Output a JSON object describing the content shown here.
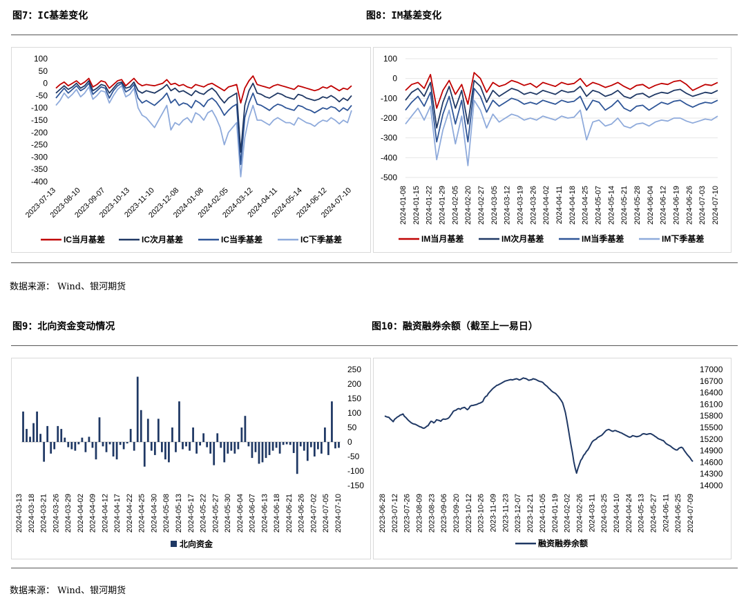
{
  "titles": {
    "fig7": "图7：IC基差变化",
    "fig8": "图8：IM基差变化",
    "fig9": "图9：北向资金变动情况",
    "fig10": "图10：融资融券余额（截至上一易日）"
  },
  "sources": {
    "top": "数据来源： Wind、银河期货",
    "bottom": "数据来源： Wind、银河期货"
  },
  "colors": {
    "red": "#c00000",
    "navy": "#1f3864",
    "blue": "#2e5597",
    "light": "#8eaadb"
  },
  "chart_data": [
    {
      "type": "line",
      "id": "ic",
      "yticks": [
        100,
        50,
        0,
        -50,
        -100,
        -150,
        -200,
        -250,
        -300,
        -350,
        -400
      ],
      "ylim": [
        -400,
        100
      ],
      "xlabels": [
        "2023-07-13",
        "2023-08-10",
        "2023-09-07",
        "2023-10-13",
        "2023-11-10",
        "2023-12-08",
        "2024-01-08",
        "2024-02-05",
        "2024-03-12",
        "2024-04-11",
        "2024-05-14",
        "2024-06-12",
        "2024-07-10"
      ],
      "series": [
        {
          "name": "IC当月基差",
          "color": "#c00000",
          "values": [
            -20,
            -5,
            5,
            -10,
            0,
            10,
            -5,
            5,
            20,
            -15,
            -5,
            10,
            5,
            -20,
            -5,
            10,
            15,
            -10,
            5,
            20,
            0,
            -10,
            -5,
            -8,
            -10,
            -5,
            0,
            15,
            -5,
            0,
            -10,
            -5,
            -15,
            -20,
            -5,
            -10,
            -15,
            -5,
            0,
            -10,
            -20,
            -30,
            -15,
            -10,
            -5,
            -80,
            -20,
            10,
            30,
            -5,
            -10,
            -15,
            -20,
            -10,
            -5,
            -10,
            -15,
            -20,
            -25,
            -10,
            -15,
            -20,
            -25,
            -30,
            -25,
            -15,
            -20,
            -10,
            -20,
            -30,
            -20,
            -25,
            -10
          ]
        },
        {
          "name": "IC次月基差",
          "color": "#1f3864",
          "values": [
            -40,
            -25,
            -10,
            -25,
            -15,
            0,
            -20,
            -10,
            10,
            -30,
            -20,
            -5,
            -10,
            -40,
            -20,
            0,
            5,
            -20,
            -15,
            5,
            -30,
            -40,
            -30,
            -35,
            -40,
            -30,
            -20,
            -5,
            -30,
            -20,
            -35,
            -30,
            -40,
            -50,
            -30,
            -40,
            -45,
            -30,
            -20,
            -35,
            -60,
            -80,
            -60,
            -50,
            -40,
            -280,
            -90,
            -30,
            0,
            -40,
            -45,
            -55,
            -60,
            -50,
            -40,
            -45,
            -55,
            -60,
            -65,
            -45,
            -50,
            -60,
            -65,
            -70,
            -65,
            -55,
            -60,
            -50,
            -60,
            -75,
            -60,
            -70,
            -50
          ]
        },
        {
          "name": "IC当季基差",
          "color": "#2e5597",
          "values": [
            -60,
            -40,
            -20,
            -40,
            -25,
            -10,
            -30,
            -20,
            0,
            -45,
            -30,
            -15,
            -20,
            -60,
            -30,
            -10,
            0,
            -35,
            -25,
            -5,
            -60,
            -80,
            -70,
            -80,
            -90,
            -75,
            -60,
            -40,
            -80,
            -65,
            -90,
            -80,
            -85,
            -100,
            -70,
            -80,
            -95,
            -70,
            -60,
            -75,
            -100,
            -130,
            -110,
            -95,
            -85,
            -330,
            -140,
            -80,
            -40,
            -85,
            -90,
            -100,
            -110,
            -95,
            -85,
            -90,
            -100,
            -105,
            -110,
            -90,
            -95,
            -105,
            -110,
            -120,
            -110,
            -100,
            -105,
            -95,
            -100,
            -115,
            -100,
            -110,
            -90
          ]
        },
        {
          "name": "IC下季基差",
          "color": "#8eaadb",
          "values": [
            -90,
            -70,
            -40,
            -60,
            -45,
            -25,
            -55,
            -40,
            -15,
            -65,
            -50,
            -30,
            -35,
            -80,
            -50,
            -25,
            -10,
            -55,
            -45,
            -20,
            -100,
            -130,
            -140,
            -160,
            -180,
            -150,
            -120,
            -90,
            -190,
            -160,
            -170,
            -150,
            -140,
            -160,
            -120,
            -130,
            -150,
            -120,
            -110,
            -140,
            -180,
            -250,
            -200,
            -180,
            -160,
            -380,
            -220,
            -140,
            -90,
            -150,
            -150,
            -160,
            -170,
            -150,
            -140,
            -150,
            -160,
            -160,
            -170,
            -140,
            -150,
            -160,
            -165,
            -175,
            -160,
            -150,
            -155,
            -140,
            -150,
            -165,
            -150,
            -160,
            -110
          ]
        }
      ]
    },
    {
      "type": "line",
      "id": "im",
      "yticks": [
        100,
        0,
        -100,
        -200,
        -300,
        -400,
        -500
      ],
      "ylim": [
        -500,
        100
      ],
      "xlabels": [
        "2024-01-08",
        "2024-01-15",
        "2024-01-22",
        "2024-01-29",
        "2024-02-05",
        "2024-02-20",
        "2024-02-27",
        "2024-03-05",
        "2024-03-12",
        "2024-03-19",
        "2024-03-26",
        "2024-04-02",
        "2024-04-11",
        "2024-04-18",
        "2024-04-25",
        "2024-05-07",
        "2024-05-14",
        "2024-05-21",
        "2024-05-28",
        "2024-06-04",
        "2024-06-12",
        "2024-06-19",
        "2024-06-26",
        "2024-07-03",
        "2024-07-10"
      ],
      "series": [
        {
          "name": "IM当月基差",
          "color": "#c00000",
          "values": [
            -60,
            -30,
            -20,
            -50,
            20,
            -150,
            -60,
            -10,
            -80,
            -30,
            -130,
            30,
            0,
            -70,
            -20,
            -40,
            -30,
            -10,
            -20,
            -35,
            -25,
            -45,
            -20,
            -30,
            -40,
            -20,
            -30,
            -25,
            0,
            -40,
            -20,
            -30,
            -45,
            -35,
            -20,
            -40,
            -55,
            -35,
            -30,
            -50,
            -35,
            -25,
            -30,
            -15,
            -10,
            -30,
            -60,
            -45,
            -30,
            -35,
            -20
          ]
        },
        {
          "name": "IM次月基差",
          "color": "#1f3864",
          "values": [
            -110,
            -70,
            -50,
            -90,
            -20,
            -250,
            -120,
            -40,
            -150,
            -60,
            -230,
            -10,
            -40,
            -120,
            -60,
            -90,
            -70,
            -50,
            -60,
            -80,
            -70,
            -80,
            -60,
            -70,
            -80,
            -60,
            -70,
            -65,
            -40,
            -90,
            -60,
            -70,
            -90,
            -80,
            -60,
            -90,
            -100,
            -80,
            -75,
            -95,
            -80,
            -70,
            -75,
            -60,
            -55,
            -75,
            -90,
            -80,
            -70,
            -75,
            -60
          ]
        },
        {
          "name": "IM当季基差",
          "color": "#2e5597",
          "values": [
            -160,
            -120,
            -90,
            -140,
            -70,
            -320,
            -180,
            -90,
            -230,
            -110,
            -320,
            -50,
            -90,
            -170,
            -110,
            -140,
            -120,
            -100,
            -110,
            -130,
            -120,
            -130,
            -110,
            -120,
            -130,
            -110,
            -120,
            -115,
            -90,
            -160,
            -110,
            -120,
            -160,
            -140,
            -110,
            -150,
            -165,
            -140,
            -135,
            -160,
            -140,
            -120,
            -130,
            -115,
            -110,
            -130,
            -145,
            -130,
            -120,
            -125,
            -110
          ]
        },
        {
          "name": "IM下季基差",
          "color": "#8eaadb",
          "values": [
            -230,
            -190,
            -150,
            -210,
            -140,
            -410,
            -260,
            -160,
            -330,
            -190,
            -440,
            -110,
            -160,
            -250,
            -180,
            -220,
            -200,
            -180,
            -190,
            -210,
            -200,
            -210,
            -190,
            -200,
            -210,
            -190,
            -200,
            -195,
            -160,
            -310,
            -220,
            -210,
            -240,
            -230,
            -200,
            -240,
            -250,
            -230,
            -225,
            -240,
            -220,
            -210,
            -215,
            -200,
            -200,
            -215,
            -225,
            -215,
            -205,
            -210,
            -190
          ]
        }
      ]
    },
    {
      "type": "bar",
      "id": "nb",
      "yticks": [
        250,
        200,
        150,
        100,
        50,
        0,
        -50,
        -100,
        -150
      ],
      "ylim": [
        -150,
        250
      ],
      "xlabels": [
        "2024-03-13",
        "2024-03-18",
        "2024-03-21",
        "2024-03-26",
        "2024-03-29",
        "2024-04-02",
        "2024-04-09",
        "2024-04-12",
        "2024-04-17",
        "2024-04-22",
        "2024-04-25",
        "2024-04-30",
        "2024-05-08",
        "2024-05-13",
        "2024-05-17",
        "2024-05-22",
        "2024-05-27",
        "2024-05-30",
        "2024-06-04",
        "2024-06-07",
        "2024-06-13",
        "2024-06-18",
        "2024-06-21",
        "2024-06-26",
        "2024-07-02",
        "2024-07-05",
        "2024-07-10"
      ],
      "series": [
        {
          "name": "北向资金",
          "color": "#1f3864",
          "values": [
            105,
            45,
            18,
            65,
            105,
            28,
            -68,
            55,
            -40,
            -25,
            55,
            45,
            15,
            -18,
            -25,
            -30,
            -8,
            15,
            -35,
            18,
            -20,
            -60,
            85,
            -15,
            -35,
            -8,
            -50,
            -60,
            -10,
            -25,
            -5,
            45,
            -30,
            225,
            110,
            -85,
            80,
            -30,
            -45,
            80,
            -35,
            -60,
            -70,
            50,
            -35,
            140,
            -25,
            -15,
            -30,
            50,
            -40,
            -12,
            30,
            -18,
            -40,
            -80,
            30,
            -20,
            -70,
            -40,
            -30,
            -40,
            -25,
            50,
            90,
            -15,
            -55,
            -35,
            -75,
            -70,
            -55,
            -45,
            -30,
            -20,
            -40,
            -10,
            -8,
            -10,
            -38,
            -110,
            -15,
            -30,
            -65,
            -18,
            -50,
            -25,
            -40,
            50,
            -45,
            140,
            -22,
            -20
          ]
        }
      ]
    },
    {
      "type": "line",
      "id": "margin",
      "yticks": [
        17000,
        16700,
        16400,
        16100,
        15800,
        15500,
        15200,
        14900,
        14600,
        14300,
        14000
      ],
      "ylim": [
        14000,
        17000
      ],
      "xlabels": [
        "2023-06-28",
        "2023-07-12",
        "2023-07-26",
        "2023-08-09",
        "2023-08-23",
        "2023-09-06",
        "2023-09-20",
        "2023-10-12",
        "2023-10-26",
        "2023-11-09",
        "2023-11-23",
        "2023-12-07",
        "2023-12-21",
        "2024-01-05",
        "2024-01-19",
        "2024-02-02",
        "2024-02-26",
        "2024-03-11",
        "2024-03-25",
        "2024-04-10",
        "2024-04-24",
        "2024-05-13",
        "2024-05-27",
        "2024-06-11",
        "2024-06-25",
        "2024-07-09"
      ],
      "series": [
        {
          "name": "融资融券余额",
          "color": "#1f3864",
          "values": [
            15800,
            15780,
            15770,
            15760,
            15720,
            15690,
            15650,
            15710,
            15740,
            15770,
            15790,
            15820,
            15830,
            15850,
            15790,
            15760,
            15720,
            15680,
            15650,
            15620,
            15600,
            15590,
            15580,
            15560,
            15540,
            15520,
            15510,
            15490,
            15480,
            15500,
            15530,
            15550,
            15610,
            15660,
            15650,
            15620,
            15650,
            15700,
            15690,
            15680,
            15660,
            15700,
            15720,
            15710,
            15720,
            15730,
            15760,
            15810,
            15860,
            15920,
            15940,
            15950,
            15980,
            15990,
            15970,
            16000,
            16010,
            16020,
            15990,
            15960,
            15990,
            16050,
            16070,
            16070,
            16080,
            16090,
            16100,
            16120,
            16130,
            16150,
            16170,
            16250,
            16300,
            16320,
            16380,
            16420,
            16460,
            16500,
            16530,
            16560,
            16590,
            16600,
            16620,
            16640,
            16660,
            16680,
            16700,
            16710,
            16720,
            16730,
            16740,
            16730,
            16740,
            16750,
            16760,
            16750,
            16730,
            16740,
            16760,
            16780,
            16770,
            16760,
            16740,
            16720,
            16730,
            16740,
            16760,
            16750,
            16740,
            16720,
            16700,
            16690,
            16680,
            16660,
            16620,
            16590,
            16560,
            16520,
            16490,
            16450,
            16420,
            16400,
            16380,
            16340,
            16300,
            16250,
            16200,
            16140,
            16020,
            15890,
            15700,
            15480,
            15260,
            15050,
            14850,
            14620,
            14450,
            14320,
            14450,
            14550,
            14650,
            14700,
            14780,
            14820,
            14880,
            14920,
            14980,
            15050,
            15120,
            15160,
            15180,
            15200,
            15240,
            15260,
            15280,
            15300,
            15340,
            15380,
            15420,
            15440,
            15450,
            15430,
            15410,
            15400,
            15420,
            15420,
            15400,
            15390,
            15370,
            15360,
            15340,
            15320,
            15300,
            15280,
            15260,
            15250,
            15260,
            15290,
            15280,
            15270,
            15260,
            15270,
            15280,
            15300,
            15330,
            15340,
            15330,
            15320,
            15330,
            15340,
            15340,
            15320,
            15300,
            15270,
            15250,
            15220,
            15200,
            15190,
            15170,
            15160,
            15120,
            15080,
            15060,
            15040,
            15020,
            14990,
            14960,
            14940,
            14920,
            14920,
            14960,
            14980,
            14990,
            14960,
            14900,
            14850,
            14800,
            14760,
            14720,
            14660,
            14620
          ]
        }
      ]
    }
  ]
}
